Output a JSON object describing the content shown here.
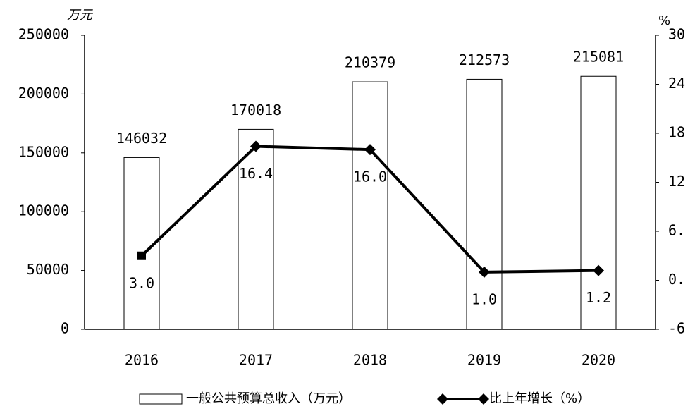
{
  "chart_data": {
    "type": "bar_line",
    "y_axis_label": "万元",
    "y2_axis_label": "%",
    "categories": [
      "2016",
      "2017",
      "2018",
      "2019",
      "2020"
    ],
    "series": [
      {
        "name": "一般公共预算总收入（万元）",
        "type": "bar",
        "color": "#ffffff",
        "values": [
          146032,
          170018,
          210379,
          212573,
          215081
        ]
      },
      {
        "name": "比上年增长（%）",
        "type": "line",
        "axis": "y2",
        "color": "#000000",
        "values": [
          3.0,
          16.4,
          16.0,
          1.0,
          1.2
        ],
        "value_labels": [
          "3.0",
          "16.4",
          "16.0",
          "1.0",
          "1.2"
        ]
      }
    ],
    "ylim": [
      0,
      250000
    ],
    "yticks": [
      0,
      50000,
      100000,
      150000,
      200000,
      250000
    ],
    "y2lim": [
      -6,
      30
    ],
    "y2ticks": [
      -6,
      {
        "value": 0,
        "label": "0."
      },
      {
        "value": 6,
        "label": "6."
      },
      12,
      18,
      24,
      30
    ]
  }
}
